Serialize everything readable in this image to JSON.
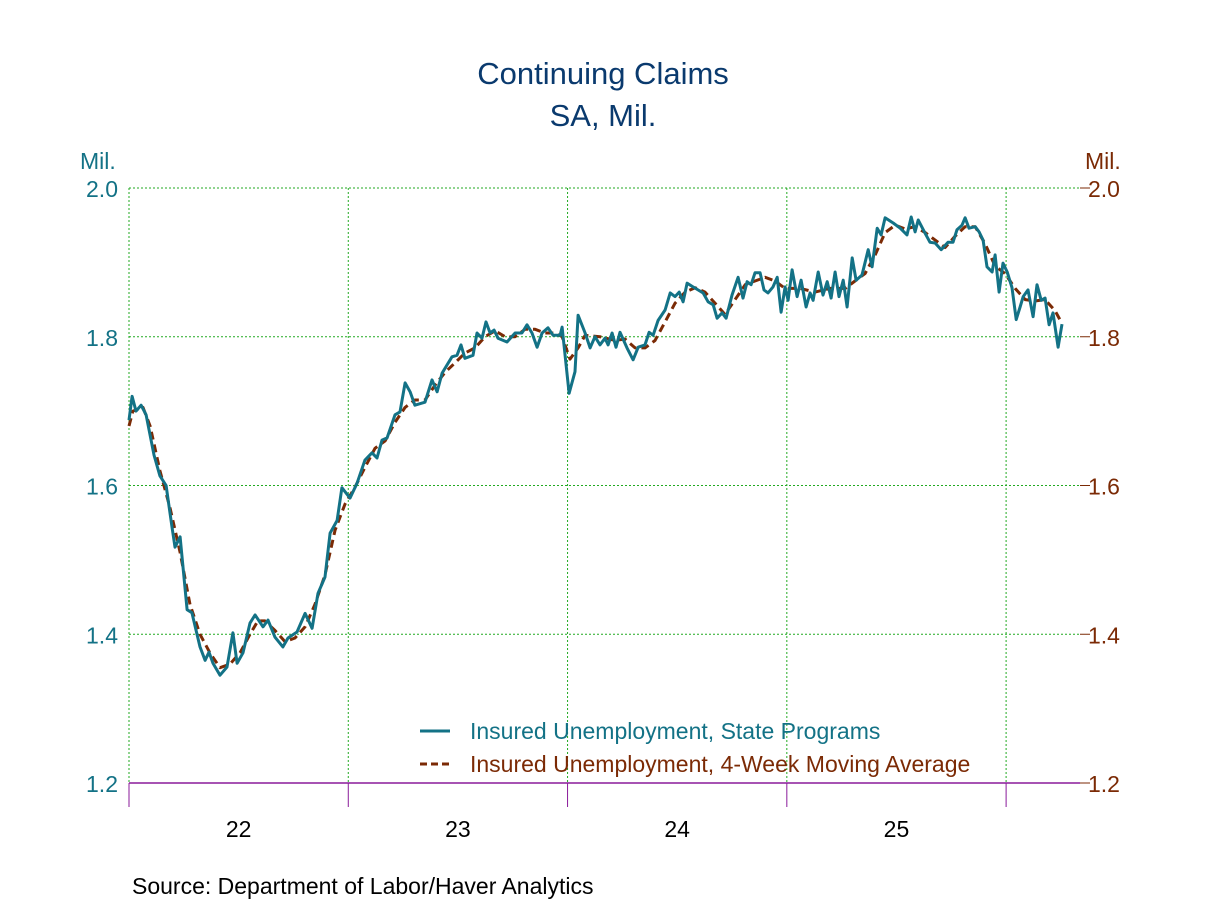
{
  "chart_data": {
    "type": "line",
    "title": "Continuing Claims",
    "subtitle": "SA, Mil.",
    "left_axis_label": "Mil.",
    "right_axis_label": "Mil.",
    "xlabel": "",
    "xlim": [
      2022.0,
      2026.337
    ],
    "ylim": [
      1.2,
      2.0
    ],
    "yticks": [
      1.2,
      1.4,
      1.6,
      1.8,
      2.0
    ],
    "ytick_labels": [
      "1.2",
      "1.4",
      "1.6",
      "1.8",
      "2.0"
    ],
    "xticks": [
      2022.5,
      2023.5,
      2024.5,
      2025.5
    ],
    "xtick_labels": [
      "22",
      "23",
      "24",
      "25"
    ],
    "year_boundaries": [
      2023,
      2024,
      2025,
      2026
    ],
    "grid": true,
    "legend_position": "bottom-right",
    "source": "Source:  Department of Labor/Haver Analytics",
    "colors": {
      "state": "#137286",
      "ma": "#7b2a05",
      "title": "#0a3a6e",
      "grid": "#22aa22",
      "axis": "#8a1a9a"
    },
    "series": [
      {
        "name": "Insured Unemployment, State Programs",
        "style": "solid",
        "points": [
          [
            2022.0,
            1.688
          ],
          [
            2022.014,
            1.72
          ],
          [
            2022.032,
            1.7
          ],
          [
            2022.055,
            1.708
          ],
          [
            2022.078,
            1.695
          ],
          [
            2022.114,
            1.641
          ],
          [
            2022.141,
            1.613
          ],
          [
            2022.169,
            1.6
          ],
          [
            2022.196,
            1.544
          ],
          [
            2022.21,
            1.517
          ],
          [
            2022.233,
            1.531
          ],
          [
            2022.265,
            1.433
          ],
          [
            2022.287,
            1.429
          ],
          [
            2022.324,
            1.383
          ],
          [
            2022.347,
            1.365
          ],
          [
            2022.365,
            1.376
          ],
          [
            2022.383,
            1.361
          ],
          [
            2022.415,
            1.345
          ],
          [
            2022.447,
            1.356
          ],
          [
            2022.474,
            1.402
          ],
          [
            2022.493,
            1.361
          ],
          [
            2022.52,
            1.375
          ],
          [
            2022.552,
            1.415
          ],
          [
            2022.575,
            1.426
          ],
          [
            2022.611,
            1.41
          ],
          [
            2022.634,
            1.419
          ],
          [
            2022.666,
            1.396
          ],
          [
            2022.702,
            1.383
          ],
          [
            2022.725,
            1.395
          ],
          [
            2022.766,
            1.403
          ],
          [
            2022.803,
            1.428
          ],
          [
            2022.835,
            1.408
          ],
          [
            2022.862,
            1.455
          ],
          [
            2022.894,
            1.477
          ],
          [
            2022.917,
            1.536
          ],
          [
            2022.949,
            1.553
          ],
          [
            2022.971,
            1.597
          ],
          [
            2023.008,
            1.583
          ],
          [
            2023.04,
            1.603
          ],
          [
            2023.076,
            1.634
          ],
          [
            2023.108,
            1.644
          ],
          [
            2023.131,
            1.637
          ],
          [
            2023.154,
            1.661
          ],
          [
            2023.177,
            1.664
          ],
          [
            2023.213,
            1.695
          ],
          [
            2023.236,
            1.699
          ],
          [
            2023.259,
            1.738
          ],
          [
            2023.282,
            1.726
          ],
          [
            2023.304,
            1.708
          ],
          [
            2023.35,
            1.712
          ],
          [
            2023.382,
            1.742
          ],
          [
            2023.405,
            1.726
          ],
          [
            2023.428,
            1.751
          ],
          [
            2023.45,
            1.762
          ],
          [
            2023.473,
            1.773
          ],
          [
            2023.496,
            1.775
          ],
          [
            2023.514,
            1.789
          ],
          [
            2023.532,
            1.771
          ],
          [
            2023.569,
            1.775
          ],
          [
            2023.587,
            1.805
          ],
          [
            2023.61,
            1.798
          ],
          [
            2023.628,
            1.82
          ],
          [
            2023.647,
            1.805
          ],
          [
            2023.665,
            1.809
          ],
          [
            2023.683,
            1.798
          ],
          [
            2023.724,
            1.793
          ],
          [
            2023.761,
            1.805
          ],
          [
            2023.792,
            1.805
          ],
          [
            2023.815,
            1.816
          ],
          [
            2023.838,
            1.805
          ],
          [
            2023.861,
            1.786
          ],
          [
            2023.884,
            1.805
          ],
          [
            2023.911,
            1.812
          ],
          [
            2023.934,
            1.802
          ],
          [
            2023.966,
            1.802
          ],
          [
            2023.975,
            1.813
          ],
          [
            2024.007,
            1.724
          ],
          [
            2024.034,
            1.753
          ],
          [
            2024.048,
            1.829
          ],
          [
            2024.08,
            1.805
          ],
          [
            2024.103,
            1.785
          ],
          [
            2024.125,
            1.8
          ],
          [
            2024.148,
            1.789
          ],
          [
            2024.171,
            1.798
          ],
          [
            2024.185,
            1.789
          ],
          [
            2024.203,
            1.805
          ],
          [
            2024.221,
            1.786
          ],
          [
            2024.239,
            1.806
          ],
          [
            2024.271,
            1.785
          ],
          [
            2024.299,
            1.769
          ],
          [
            2024.322,
            1.786
          ],
          [
            2024.353,
            1.789
          ],
          [
            2024.372,
            1.806
          ],
          [
            2024.39,
            1.802
          ],
          [
            2024.413,
            1.822
          ],
          [
            2024.445,
            1.836
          ],
          [
            2024.468,
            1.859
          ],
          [
            2024.49,
            1.854
          ],
          [
            2024.509,
            1.86
          ],
          [
            2024.527,
            1.847
          ],
          [
            2024.545,
            1.872
          ],
          [
            2024.572,
            1.867
          ],
          [
            2024.595,
            1.863
          ],
          [
            2024.618,
            1.859
          ],
          [
            2024.641,
            1.847
          ],
          [
            2024.664,
            1.843
          ],
          [
            2024.682,
            1.825
          ],
          [
            2024.705,
            1.832
          ],
          [
            2024.723,
            1.825
          ],
          [
            2024.75,
            1.856
          ],
          [
            2024.778,
            1.88
          ],
          [
            2024.8,
            1.852
          ],
          [
            2024.819,
            1.874
          ],
          [
            2024.837,
            1.87
          ],
          [
            2024.855,
            1.886
          ],
          [
            2024.878,
            1.886
          ],
          [
            2024.896,
            1.863
          ],
          [
            2024.914,
            1.859
          ],
          [
            2024.937,
            1.867
          ],
          [
            2024.956,
            1.88
          ],
          [
            2024.974,
            1.833
          ],
          [
            2024.992,
            1.867
          ],
          [
            2025.006,
            1.849
          ],
          [
            2025.024,
            1.89
          ],
          [
            2025.047,
            1.854
          ],
          [
            2025.065,
            1.876
          ],
          [
            2025.088,
            1.84
          ],
          [
            2025.106,
            1.859
          ],
          [
            2025.12,
            1.849
          ],
          [
            2025.143,
            1.887
          ],
          [
            2025.165,
            1.856
          ],
          [
            2025.184,
            1.874
          ],
          [
            2025.202,
            1.852
          ],
          [
            2025.22,
            1.887
          ],
          [
            2025.238,
            1.854
          ],
          [
            2025.257,
            1.876
          ],
          [
            2025.275,
            1.84
          ],
          [
            2025.298,
            1.906
          ],
          [
            2025.316,
            1.876
          ],
          [
            2025.343,
            1.883
          ],
          [
            2025.371,
            1.917
          ],
          [
            2025.389,
            1.894
          ],
          [
            2025.412,
            1.946
          ],
          [
            2025.43,
            1.937
          ],
          [
            2025.448,
            1.96
          ],
          [
            2025.485,
            1.953
          ],
          [
            2025.517,
            1.946
          ],
          [
            2025.548,
            1.937
          ],
          [
            2025.567,
            1.961
          ],
          [
            2025.585,
            1.941
          ],
          [
            2025.599,
            1.957
          ],
          [
            2025.631,
            1.939
          ],
          [
            2025.653,
            1.927
          ],
          [
            2025.676,
            1.926
          ],
          [
            2025.704,
            1.917
          ],
          [
            2025.735,
            1.927
          ],
          [
            2025.758,
            1.927
          ],
          [
            2025.776,
            1.944
          ],
          [
            2025.799,
            1.95
          ],
          [
            2025.813,
            1.96
          ],
          [
            2025.831,
            1.946
          ],
          [
            2025.859,
            1.948
          ],
          [
            2025.877,
            1.941
          ],
          [
            2025.895,
            1.93
          ],
          [
            2025.913,
            1.894
          ],
          [
            2025.936,
            1.887
          ],
          [
            2025.95,
            1.91
          ],
          [
            2025.968,
            1.86
          ],
          [
            2025.986,
            1.899
          ],
          [
            2026.005,
            1.887
          ],
          [
            2026.027,
            1.866
          ],
          [
            2026.046,
            1.823
          ],
          [
            2026.064,
            1.84
          ],
          [
            2026.078,
            1.854
          ],
          [
            2026.1,
            1.863
          ],
          [
            2026.123,
            1.827
          ],
          [
            2026.141,
            1.87
          ],
          [
            2026.16,
            1.849
          ],
          [
            2026.178,
            1.852
          ],
          [
            2026.196,
            1.816
          ],
          [
            2026.214,
            1.832
          ],
          [
            2026.237,
            1.786
          ],
          [
            2026.255,
            1.817
          ]
        ]
      },
      {
        "name": "Insured Unemployment, 4-Week Moving Average",
        "style": "dashed",
        "points": [
          [
            2022.0,
            1.68
          ],
          [
            2022.018,
            1.7
          ],
          [
            2022.064,
            1.705
          ],
          [
            2022.096,
            1.68
          ],
          [
            2022.141,
            1.62
          ],
          [
            2022.187,
            1.57
          ],
          [
            2022.233,
            1.51
          ],
          [
            2022.278,
            1.44
          ],
          [
            2022.324,
            1.4
          ],
          [
            2022.369,
            1.375
          ],
          [
            2022.415,
            1.355
          ],
          [
            2022.461,
            1.36
          ],
          [
            2022.506,
            1.375
          ],
          [
            2022.552,
            1.4
          ],
          [
            2022.588,
            1.418
          ],
          [
            2022.62,
            1.418
          ],
          [
            2022.666,
            1.405
          ],
          [
            2022.712,
            1.39
          ],
          [
            2022.757,
            1.395
          ],
          [
            2022.803,
            1.41
          ],
          [
            2022.848,
            1.44
          ],
          [
            2022.894,
            1.48
          ],
          [
            2022.94,
            1.54
          ],
          [
            2022.985,
            1.575
          ],
          [
            2023.031,
            1.598
          ],
          [
            2023.077,
            1.625
          ],
          [
            2023.122,
            1.65
          ],
          [
            2023.168,
            1.66
          ],
          [
            2023.213,
            1.685
          ],
          [
            2023.259,
            1.705
          ],
          [
            2023.304,
            1.715
          ],
          [
            2023.35,
            1.715
          ],
          [
            2023.396,
            1.735
          ],
          [
            2023.441,
            1.752
          ],
          [
            2023.487,
            1.765
          ],
          [
            2023.532,
            1.778
          ],
          [
            2023.578,
            1.785
          ],
          [
            2023.624,
            1.8
          ],
          [
            2023.669,
            1.808
          ],
          [
            2023.715,
            1.8
          ],
          [
            2023.761,
            1.8
          ],
          [
            2023.806,
            1.81
          ],
          [
            2023.852,
            1.81
          ],
          [
            2023.897,
            1.805
          ],
          [
            2023.943,
            1.805
          ],
          [
            2023.975,
            1.8
          ],
          [
            2024.011,
            1.77
          ],
          [
            2024.048,
            1.785
          ],
          [
            2024.08,
            1.802
          ],
          [
            2024.148,
            1.8
          ],
          [
            2024.217,
            1.795
          ],
          [
            2024.262,
            1.797
          ],
          [
            2024.308,
            1.785
          ],
          [
            2024.353,
            1.785
          ],
          [
            2024.399,
            1.795
          ],
          [
            2024.445,
            1.82
          ],
          [
            2024.49,
            1.845
          ],
          [
            2024.536,
            1.86
          ],
          [
            2024.582,
            1.866
          ],
          [
            2024.627,
            1.86
          ],
          [
            2024.673,
            1.845
          ],
          [
            2024.718,
            1.83
          ],
          [
            2024.764,
            1.85
          ],
          [
            2024.81,
            1.87
          ],
          [
            2024.855,
            1.875
          ],
          [
            2024.901,
            1.88
          ],
          [
            2024.946,
            1.875
          ],
          [
            2024.992,
            1.865
          ],
          [
            2025.06,
            1.865
          ],
          [
            2025.129,
            1.86
          ],
          [
            2025.197,
            1.865
          ],
          [
            2025.266,
            1.865
          ],
          [
            2025.311,
            1.875
          ],
          [
            2025.357,
            1.885
          ],
          [
            2025.403,
            1.91
          ],
          [
            2025.448,
            1.94
          ],
          [
            2025.494,
            1.95
          ],
          [
            2025.539,
            1.945
          ],
          [
            2025.585,
            1.948
          ],
          [
            2025.631,
            1.94
          ],
          [
            2025.676,
            1.93
          ],
          [
            2025.722,
            1.92
          ],
          [
            2025.767,
            1.935
          ],
          [
            2025.813,
            1.948
          ],
          [
            2025.859,
            1.948
          ],
          [
            2025.904,
            1.925
          ],
          [
            2025.95,
            1.895
          ],
          [
            2025.995,
            1.885
          ],
          [
            2026.041,
            1.865
          ],
          [
            2026.087,
            1.85
          ],
          [
            2026.132,
            1.848
          ],
          [
            2026.178,
            1.85
          ],
          [
            2026.223,
            1.835
          ],
          [
            2026.255,
            1.818
          ]
        ]
      }
    ]
  }
}
